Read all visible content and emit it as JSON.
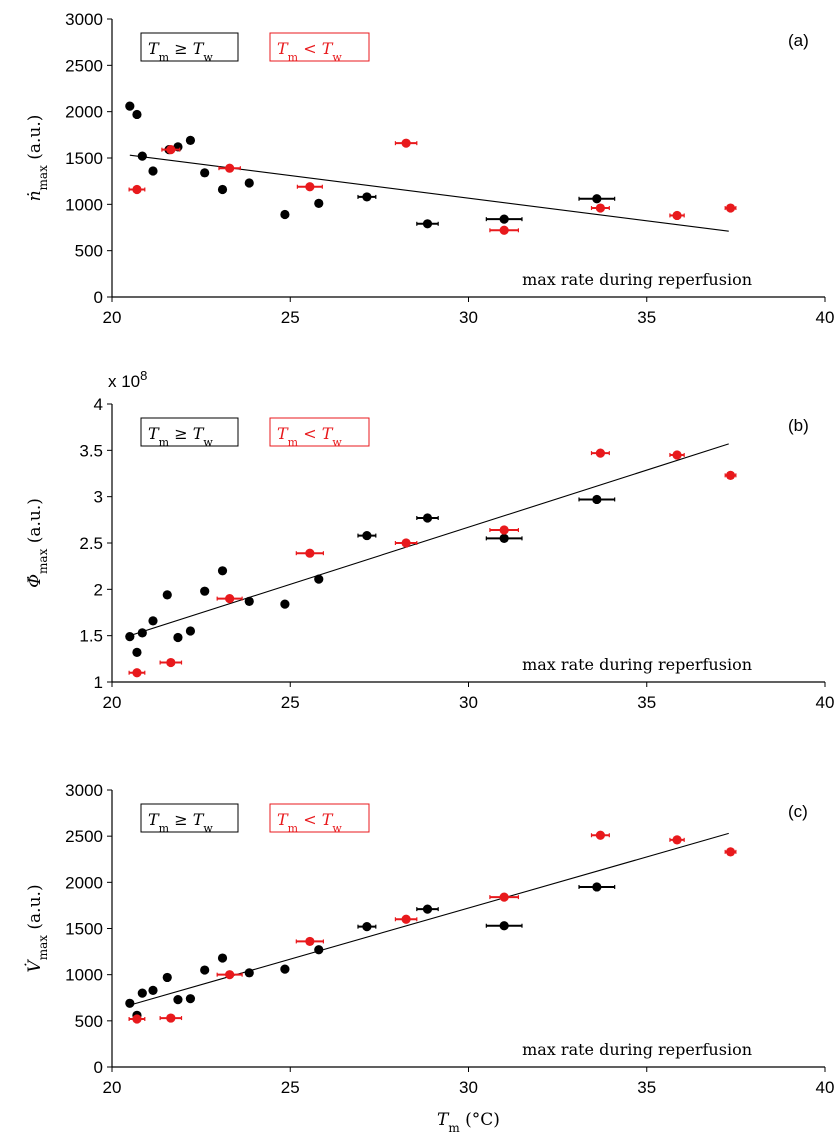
{
  "chart_data": [
    {
      "type": "scatter",
      "panel_label": "(a)",
      "ylabel": "ṅ_max (a.u.)",
      "annotation": "max rate during reperfusion",
      "xlim": [
        20,
        40
      ],
      "ylim": [
        0,
        3000
      ],
      "xticks": [
        "20",
        "25",
        "30",
        "35",
        "40"
      ],
      "yticks": [
        "0",
        "500",
        "1000",
        "1500",
        "2000",
        "2500",
        "3000"
      ],
      "legend": [
        {
          "text": "T_m ≥ T_w",
          "color": "#000000"
        },
        {
          "text": "T_m < T_w",
          "color": "#e8191c"
        }
      ],
      "series": [
        {
          "name": "T_m ≥ T_w",
          "color": "#000000",
          "points": [
            [
              20.5,
              2060,
              0
            ],
            [
              20.7,
              1970,
              0
            ],
            [
              20.85,
              1520,
              0
            ],
            [
              21.15,
              1360,
              0
            ],
            [
              21.6,
              1590,
              0
            ],
            [
              21.85,
              1620,
              0
            ],
            [
              22.2,
              1690,
              0
            ],
            [
              22.6,
              1340,
              0
            ],
            [
              23.1,
              1160,
              0
            ],
            [
              23.85,
              1230,
              0
            ],
            [
              24.85,
              890,
              0
            ],
            [
              25.8,
              1010,
              0
            ],
            [
              27.15,
              1080,
              0.25
            ],
            [
              28.85,
              790,
              0.3
            ],
            [
              31.0,
              840,
              0.5
            ],
            [
              33.6,
              1060,
              0.5
            ]
          ]
        },
        {
          "name": "T_m < T_w",
          "color": "#e8191c",
          "points": [
            [
              20.7,
              1160,
              0.22
            ],
            [
              21.65,
              1590,
              0.25
            ],
            [
              23.3,
              1390,
              0.3
            ],
            [
              25.55,
              1190,
              0.35
            ],
            [
              28.25,
              1660,
              0.3
            ],
            [
              31.0,
              720,
              0.4
            ],
            [
              33.7,
              960,
              0.25
            ],
            [
              35.85,
              880,
              0.2
            ],
            [
              37.35,
              960,
              0.15
            ]
          ]
        }
      ],
      "fit": [
        [
          20.5,
          1530
        ],
        [
          37.3,
          710
        ]
      ]
    },
    {
      "type": "scatter",
      "panel_label": "(b)",
      "ylabel": "Φ̇_max (a.u.)",
      "multiplier": "x 10",
      "multiplier_exp": "8",
      "annotation": "max rate during reperfusion",
      "xlim": [
        20,
        40
      ],
      "ylim": [
        1,
        4
      ],
      "xticks": [
        "20",
        "25",
        "30",
        "35",
        "40"
      ],
      "yticks": [
        "1",
        "1.5",
        "2",
        "2.5",
        "3",
        "3.5",
        "4"
      ],
      "legend": [
        {
          "text": "T_m ≥ T_w",
          "color": "#000000"
        },
        {
          "text": "T_m < T_w",
          "color": "#e8191c"
        }
      ],
      "series": [
        {
          "name": "T_m ≥ T_w",
          "color": "#000000",
          "points": [
            [
              20.5,
              1.49,
              0
            ],
            [
              20.7,
              1.32,
              0
            ],
            [
              20.85,
              1.53,
              0
            ],
            [
              21.15,
              1.66,
              0
            ],
            [
              21.55,
              1.94,
              0
            ],
            [
              21.85,
              1.48,
              0
            ],
            [
              22.2,
              1.55,
              0
            ],
            [
              22.6,
              1.98,
              0
            ],
            [
              23.1,
              2.2,
              0
            ],
            [
              23.85,
              1.87,
              0
            ],
            [
              24.85,
              1.84,
              0
            ],
            [
              25.8,
              2.11,
              0
            ],
            [
              27.15,
              2.58,
              0.25
            ],
            [
              28.85,
              2.77,
              0.3
            ],
            [
              31.0,
              2.55,
              0.5
            ],
            [
              33.6,
              2.97,
              0.5
            ]
          ]
        },
        {
          "name": "T_m < T_w",
          "color": "#e8191c",
          "points": [
            [
              20.7,
              1.1,
              0.22
            ],
            [
              21.65,
              1.21,
              0.3
            ],
            [
              23.3,
              1.9,
              0.35
            ],
            [
              25.55,
              2.39,
              0.38
            ],
            [
              28.25,
              2.5,
              0.3
            ],
            [
              31.0,
              2.64,
              0.4
            ],
            [
              33.7,
              3.47,
              0.25
            ],
            [
              35.85,
              3.45,
              0.2
            ],
            [
              37.35,
              3.23,
              0.15
            ]
          ]
        }
      ],
      "fit": [
        [
          20.5,
          1.5
        ],
        [
          37.3,
          3.57
        ]
      ]
    },
    {
      "type": "scatter",
      "panel_label": "(c)",
      "ylabel": "V̇_max (a.u.)",
      "xlabel": "T_m (°C)",
      "annotation": "max rate during reperfusion",
      "xlim": [
        20,
        40
      ],
      "ylim": [
        0,
        3000
      ],
      "xticks": [
        "20",
        "25",
        "30",
        "35",
        "40"
      ],
      "yticks": [
        "0",
        "500",
        "1000",
        "1500",
        "2000",
        "2500",
        "3000"
      ],
      "legend": [
        {
          "text": "T_m ≥ T_w",
          "color": "#000000"
        },
        {
          "text": "T_m < T_w",
          "color": "#e8191c"
        }
      ],
      "series": [
        {
          "name": "T_m ≥ T_w",
          "color": "#000000",
          "points": [
            [
              20.5,
              690,
              0
            ],
            [
              20.7,
              560,
              0
            ],
            [
              20.85,
              800,
              0
            ],
            [
              21.15,
              830,
              0
            ],
            [
              21.55,
              970,
              0
            ],
            [
              21.85,
              730,
              0
            ],
            [
              22.2,
              740,
              0
            ],
            [
              22.6,
              1050,
              0
            ],
            [
              23.1,
              1180,
              0
            ],
            [
              23.85,
              1020,
              0
            ],
            [
              24.85,
              1060,
              0
            ],
            [
              25.8,
              1270,
              0
            ],
            [
              27.15,
              1520,
              0.25
            ],
            [
              28.85,
              1710,
              0.3
            ],
            [
              31.0,
              1530,
              0.5
            ],
            [
              33.6,
              1950,
              0.5
            ]
          ]
        },
        {
          "name": "T_m < T_w",
          "color": "#e8191c",
          "points": [
            [
              20.7,
              520,
              0.22
            ],
            [
              21.65,
              530,
              0.3
            ],
            [
              23.3,
              1000,
              0.35
            ],
            [
              25.55,
              1360,
              0.38
            ],
            [
              28.25,
              1600,
              0.3
            ],
            [
              31.0,
              1840,
              0.4
            ],
            [
              33.7,
              2510,
              0.25
            ],
            [
              35.85,
              2460,
              0.2
            ],
            [
              37.35,
              2330,
              0.15
            ]
          ]
        }
      ],
      "fit": [
        [
          20.5,
          670
        ],
        [
          37.3,
          2530
        ]
      ]
    }
  ]
}
